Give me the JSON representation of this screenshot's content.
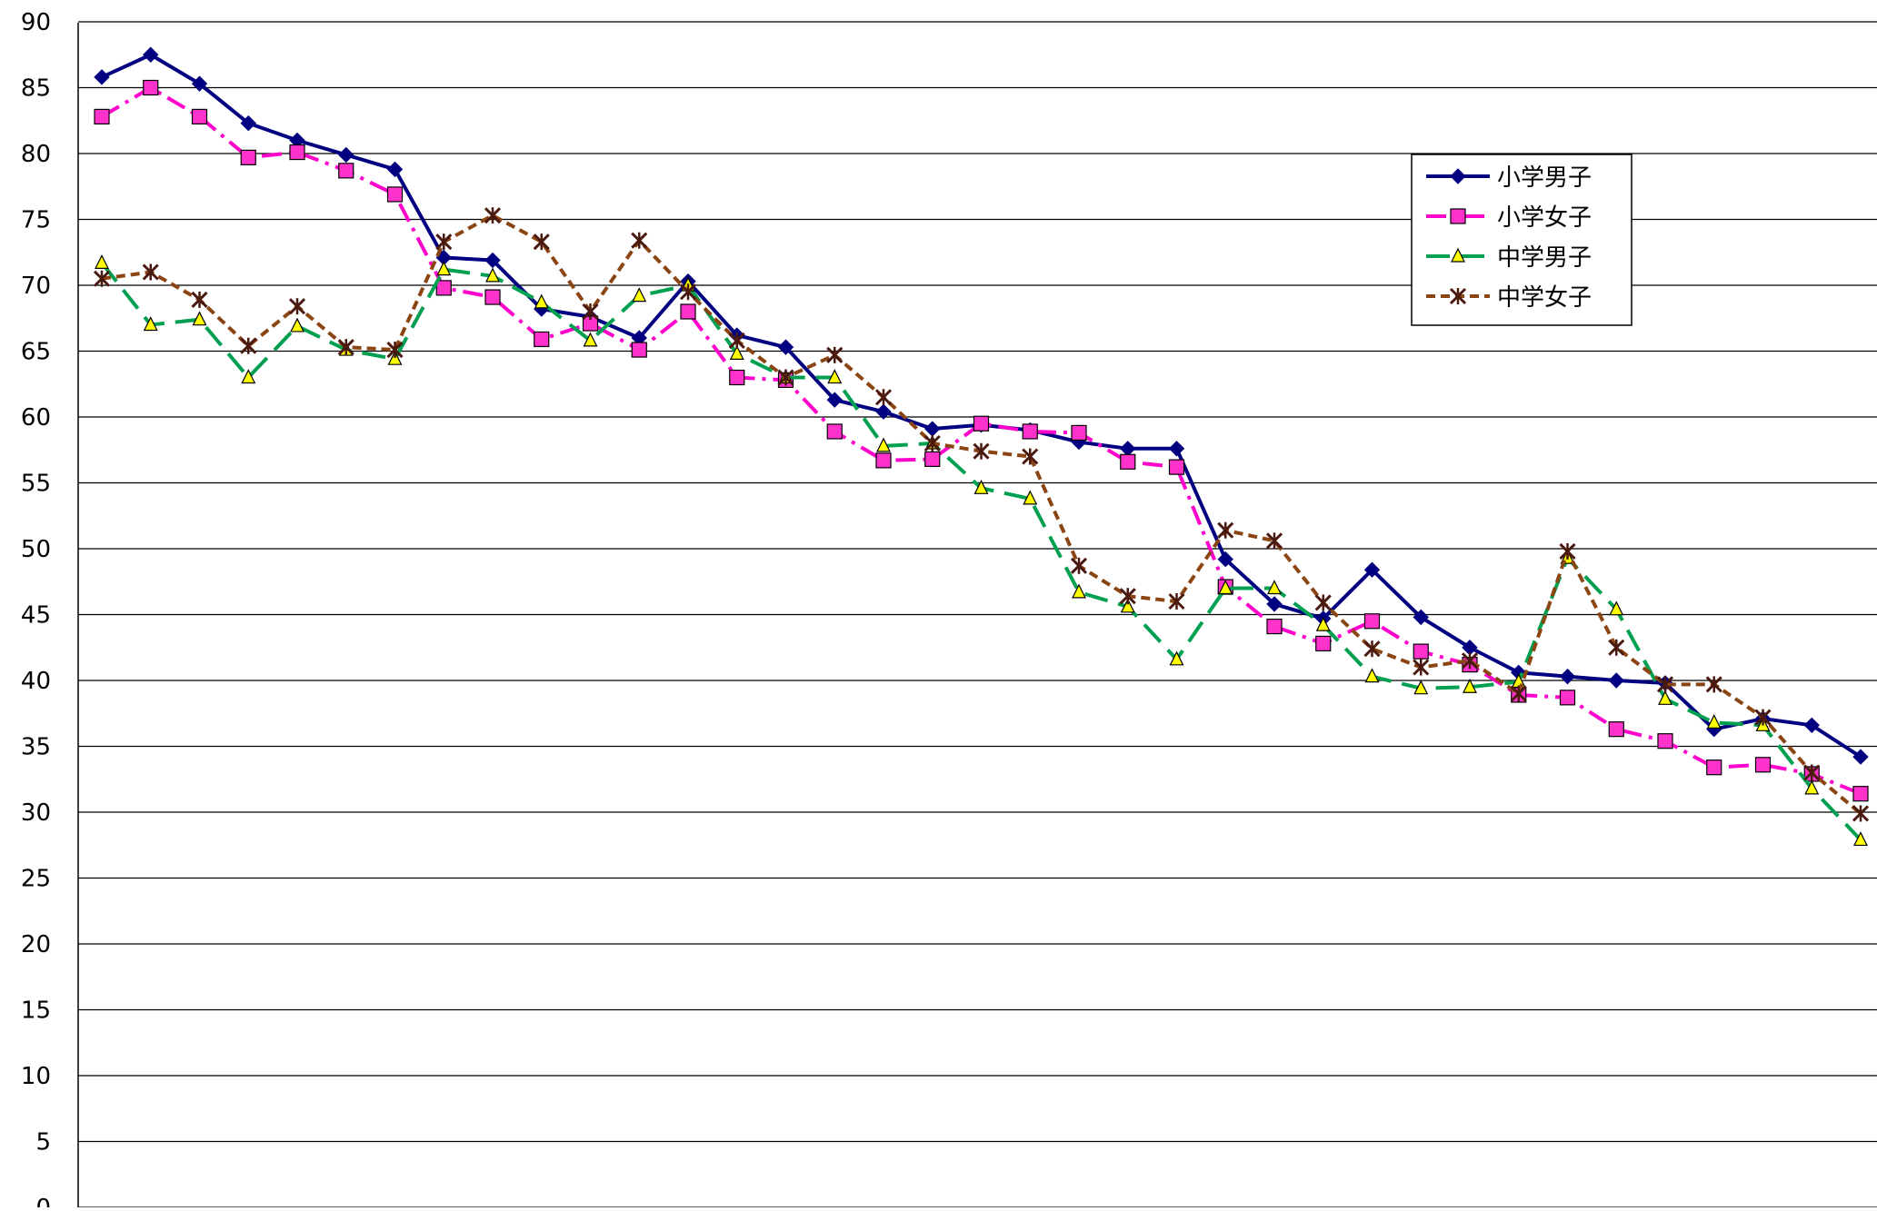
{
  "chart_data": {
    "type": "line",
    "title": "",
    "xlabel": "",
    "ylabel": "",
    "ylim": [
      0,
      90
    ],
    "ytick_step": 5,
    "grid": true,
    "legend_position": "upper-right",
    "n_points": 37,
    "series": [
      {
        "name": "小学男子",
        "color": "#000080",
        "marker": "diamond",
        "dash": "solid",
        "values": [
          85.8,
          87.5,
          85.3,
          82.3,
          81.0,
          79.9,
          78.8,
          72.1,
          71.9,
          68.2,
          67.6,
          66.0,
          70.3,
          66.2,
          65.3,
          61.3,
          60.4,
          59.1,
          59.4,
          59.0,
          58.1,
          57.6,
          57.6,
          49.2,
          45.8,
          44.7,
          48.4,
          44.8,
          42.5,
          40.6,
          40.3,
          40.0,
          39.8,
          36.3,
          37.1,
          36.6,
          34.2
        ]
      },
      {
        "name": "小学女子",
        "color": "#FF00CC",
        "marker": "square",
        "dash": "dashdot",
        "values": [
          82.8,
          85.0,
          82.8,
          79.7,
          80.1,
          78.7,
          76.9,
          69.8,
          69.1,
          65.9,
          67.1,
          65.1,
          68.0,
          63.0,
          62.8,
          58.9,
          56.7,
          56.8,
          59.5,
          58.9,
          58.8,
          56.6,
          56.2,
          47.1,
          44.1,
          42.8,
          44.5,
          42.2,
          41.2,
          38.9,
          38.7,
          36.3,
          35.4,
          33.4,
          33.6,
          32.9,
          31.4
        ]
      },
      {
        "name": "中学男子",
        "color": "#00A050",
        "marker": "triangle",
        "dash": "longdash",
        "values": [
          71.7,
          67.0,
          67.4,
          63.0,
          66.9,
          65.1,
          64.4,
          71.2,
          70.7,
          68.7,
          65.8,
          69.2,
          70.0,
          64.8,
          63.0,
          63.0,
          57.8,
          58.0,
          54.6,
          53.8,
          46.7,
          45.6,
          41.6,
          47.0,
          47.0,
          44.2,
          40.3,
          39.4,
          39.5,
          39.9,
          49.3,
          45.4,
          38.6,
          36.8,
          36.6,
          31.8,
          27.9
        ]
      },
      {
        "name": "中学女子",
        "color": "#8B4513",
        "marker": "star",
        "dash": "shortdash",
        "values": [
          70.5,
          71.0,
          68.9,
          65.4,
          68.4,
          65.3,
          65.1,
          73.3,
          75.3,
          73.3,
          68.0,
          73.4,
          69.5,
          65.8,
          63.0,
          64.7,
          61.5,
          58.0,
          57.4,
          57.0,
          48.7,
          46.4,
          46.0,
          51.4,
          50.6,
          45.9,
          42.4,
          41.0,
          41.5,
          39.0,
          49.8,
          42.5,
          39.7,
          39.7,
          37.2,
          33.0,
          29.9
        ]
      }
    ]
  }
}
